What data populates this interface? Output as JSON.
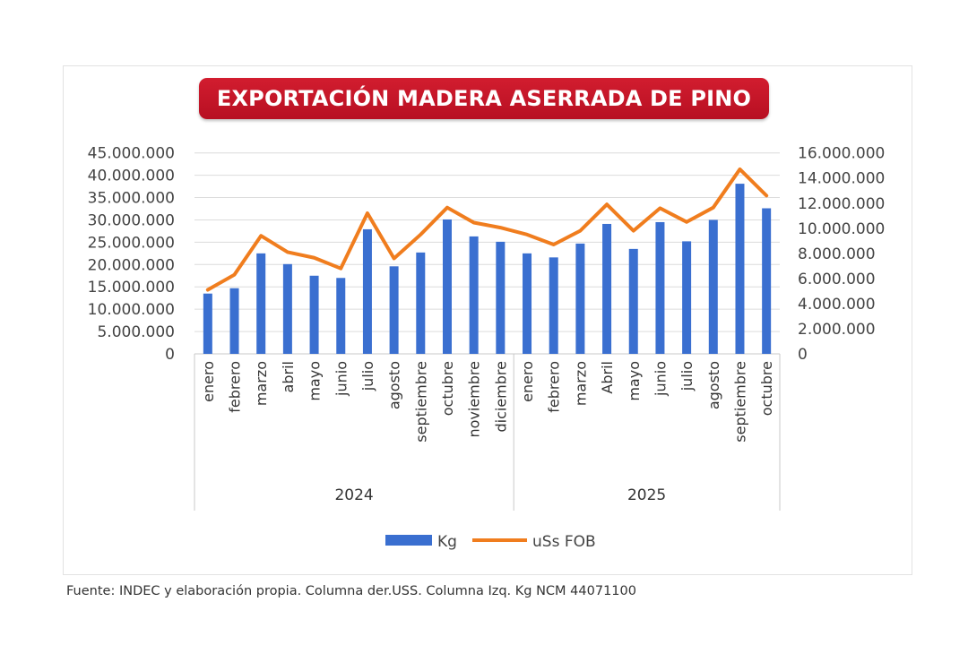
{
  "chart_data": {
    "type": "bar+line",
    "title": "EXPORTACIÓN MADERA ASERRADA DE PINO",
    "groups": [
      {
        "label": "2024",
        "categories": [
          "enero",
          "febrero",
          "marzo",
          "abril",
          "mayo",
          "junio",
          "julio",
          "agosto",
          "septiembre",
          "octubre",
          "noviembre",
          "diciembre"
        ]
      },
      {
        "label": "2025",
        "categories": [
          "enero",
          "febrero",
          "marzo",
          "Abril",
          "mayo",
          "junio",
          "julio",
          "agosto",
          "septiembre",
          "octubre"
        ]
      }
    ],
    "series": [
      {
        "name": "Kg",
        "type": "bar",
        "axis": "left",
        "color": "#3a6fd0",
        "values": [
          13500000,
          14700000,
          22500000,
          20100000,
          17500000,
          17000000,
          27900000,
          19600000,
          22700000,
          30100000,
          26300000,
          25100000,
          22500000,
          21600000,
          24700000,
          29100000,
          23500000,
          29500000,
          25200000,
          30000000,
          38100000,
          32600000
        ]
      },
      {
        "name": "uSs FOB",
        "type": "line",
        "axis": "right",
        "color": "#f07d1e",
        "values": [
          5100000,
          6300000,
          9400000,
          8100000,
          7650000,
          6800000,
          11200000,
          7600000,
          9500000,
          11650000,
          10450000,
          10050000,
          9500000,
          8700000,
          9800000,
          11900000,
          9800000,
          11600000,
          10500000,
          11650000,
          14700000,
          12600000
        ]
      }
    ],
    "y_left": {
      "range": [
        0,
        45000000
      ],
      "ticks": [
        "0",
        "5.000.000",
        "10.000.000",
        "15.000.000",
        "20.000.000",
        "25.000.000",
        "30.000.000",
        "35.000.000",
        "40.000.000",
        "45.000.000"
      ]
    },
    "y_right": {
      "range": [
        0,
        16000000
      ],
      "ticks": [
        "0",
        "2.000.000",
        "4.000.000",
        "6.000.000",
        "8.000.000",
        "10.000.000",
        "12.000.000",
        "14.000.000",
        "16.000.000"
      ]
    },
    "grid": true,
    "legend": "bottom"
  },
  "footer": "Fuente: INDEC y elaboración propia. Columna der.USS. Columna Izq. Kg NCM 44071100"
}
